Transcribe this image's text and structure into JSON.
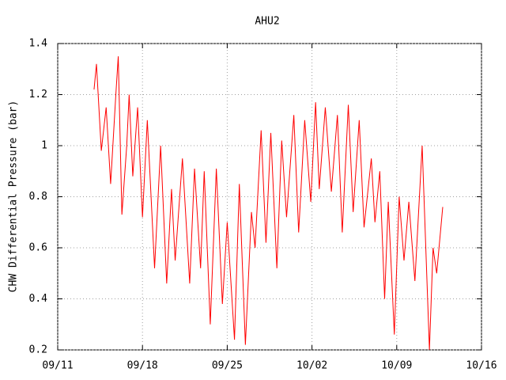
{
  "chart_data": {
    "type": "line",
    "title": "AHU2",
    "y_label": "CHW Differential Pressure (bar)",
    "x": [
      3.0,
      3.2,
      3.6,
      4.0,
      4.37,
      4.8,
      5.0,
      5.3,
      5.7,
      5.9,
      6.2,
      6.6,
      7.0,
      7.4,
      8.0,
      8.5,
      9.0,
      9.4,
      9.7,
      10.3,
      10.9,
      11.3,
      11.8,
      12.1,
      12.6,
      13.1,
      13.6,
      14.0,
      14.6,
      15.0,
      15.5,
      16.0,
      16.3,
      16.8,
      17.2,
      17.6,
      18.1,
      18.5,
      18.9,
      19.5,
      19.9,
      20.4,
      20.9,
      21.3,
      21.6,
      22.1,
      22.6,
      23.1,
      23.5,
      24.0,
      24.4,
      24.9,
      25.3,
      25.9,
      26.2,
      26.6,
      27.0,
      27.3,
      27.8,
      28.2,
      28.6,
      29.0,
      29.5,
      30.1,
      30.7,
      31.0,
      31.3,
      31.8
    ],
    "series": [
      {
        "color": "#ff0000",
        "values": [
          1.22,
          1.32,
          0.98,
          1.15,
          0.85,
          1.2,
          1.35,
          0.73,
          1.0,
          1.2,
          0.88,
          1.15,
          0.72,
          1.1,
          0.52,
          1.0,
          0.46,
          0.83,
          0.55,
          0.95,
          0.46,
          0.91,
          0.52,
          0.9,
          0.3,
          0.91,
          0.38,
          0.7,
          0.24,
          0.85,
          0.22,
          0.74,
          0.6,
          1.06,
          0.62,
          1.05,
          0.52,
          1.02,
          0.72,
          1.12,
          0.66,
          1.1,
          0.78,
          1.17,
          0.83,
          1.15,
          0.82,
          1.12,
          0.66,
          1.16,
          0.74,
          1.1,
          0.68,
          0.95,
          0.7,
          0.9,
          0.4,
          0.78,
          0.26,
          0.8,
          0.55,
          0.78,
          0.47,
          1.0,
          0.2,
          0.6,
          0.5,
          0.76
        ]
      }
    ],
    "xlim": [
      0,
      35
    ],
    "xticks": [
      {
        "value": 0,
        "label": "09/11"
      },
      {
        "value": 7,
        "label": "09/18"
      },
      {
        "value": 14,
        "label": "09/25"
      },
      {
        "value": 21,
        "label": "10/02"
      },
      {
        "value": 28,
        "label": "10/09"
      },
      {
        "value": 35,
        "label": "10/16"
      }
    ],
    "ylim": [
      0.2,
      1.4
    ],
    "yticks": [
      0.2,
      0.4,
      0.6,
      0.8,
      1,
      1.2,
      1.4
    ],
    "grid": true
  }
}
